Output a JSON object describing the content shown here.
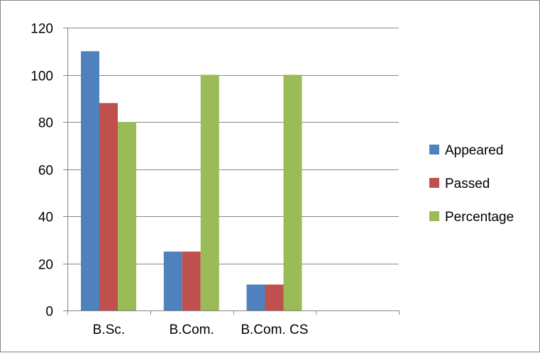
{
  "chart_data": {
    "type": "bar",
    "title": "",
    "xlabel": "",
    "ylabel": "",
    "categories": [
      "B.Sc.",
      "B.Com.",
      "B.Com. CS",
      ""
    ],
    "series": [
      {
        "name": "Appeared",
        "color": "#4F81BD",
        "values": [
          110,
          25,
          11,
          null
        ]
      },
      {
        "name": "Passed",
        "color": "#C0504D",
        "values": [
          88,
          25,
          11,
          null
        ]
      },
      {
        "name": "Percentage",
        "color": "#9BBB59",
        "values": [
          80,
          100,
          100,
          null
        ]
      }
    ],
    "ylim": [
      0,
      120
    ],
    "yticks": [
      0,
      20,
      40,
      60,
      80,
      100,
      120
    ],
    "grid": true,
    "legend_position": "right"
  }
}
